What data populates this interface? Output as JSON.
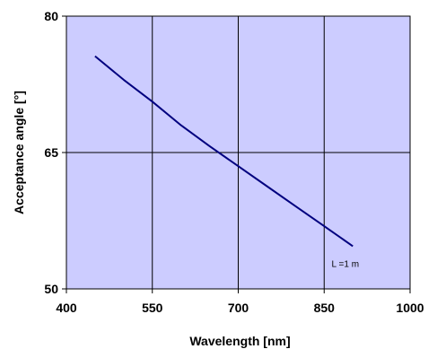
{
  "chart_data": {
    "type": "line",
    "title": "",
    "xlabel": "Wavelength [nm]",
    "ylabel": "Acceptance angle [°]",
    "xlim": [
      400,
      1000
    ],
    "ylim": [
      50,
      80
    ],
    "xticks": [
      400,
      550,
      700,
      850,
      1000
    ],
    "yticks": [
      50,
      65,
      80
    ],
    "x_tick_labels": [
      "400",
      "550",
      "700",
      "850",
      "1000"
    ],
    "y_tick_labels": [
      "50",
      "65",
      "80"
    ],
    "grid": true,
    "series": [
      {
        "x": [
          450,
          500,
          550,
          600,
          650,
          700,
          750,
          800,
          850,
          900
        ],
        "y": [
          75.6,
          73.0,
          70.6,
          68.0,
          65.7,
          63.5,
          61.3,
          59.1,
          56.9,
          54.7
        ]
      }
    ],
    "annotation": "L =1 m",
    "colors": {
      "plot_background": "#ccccff",
      "line": "#00007f",
      "grid": "#000000"
    }
  }
}
